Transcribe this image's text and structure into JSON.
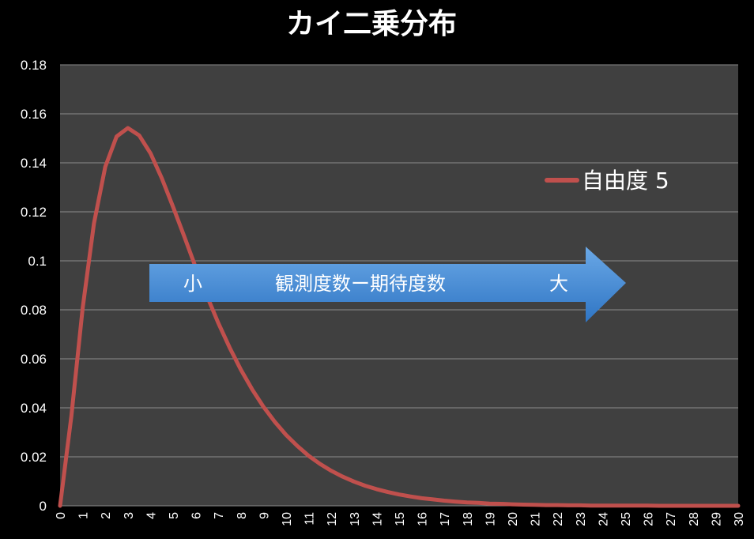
{
  "chart_data": {
    "type": "line",
    "title": "カイ二乗分布",
    "xlabel": "",
    "ylabel": "",
    "xlim": [
      0,
      30
    ],
    "ylim": [
      0,
      0.18
    ],
    "yticks": [
      "0",
      "0.02",
      "0.04",
      "0.06",
      "0.08",
      "0.1",
      "0.12",
      "0.14",
      "0.16",
      "0.18"
    ],
    "xticks": [
      "0",
      "1",
      "2",
      "3",
      "4",
      "5",
      "6",
      "7",
      "8",
      "9",
      "10",
      "11",
      "12",
      "13",
      "14",
      "15",
      "16",
      "17",
      "18",
      "19",
      "20",
      "21",
      "22",
      "23",
      "24",
      "25",
      "26",
      "27",
      "28",
      "29",
      "30"
    ],
    "grid": true,
    "legend_position": "right",
    "series": [
      {
        "name": "自由度 5",
        "color": "#c0504d",
        "x": [
          0,
          0.5,
          1,
          1.5,
          2,
          2.5,
          3,
          3.5,
          4,
          4.5,
          5,
          5.5,
          6,
          6.5,
          7,
          7.5,
          8,
          8.5,
          9,
          9.5,
          10,
          10.5,
          11,
          11.5,
          12,
          12.5,
          13,
          13.5,
          14,
          14.5,
          15,
          15.5,
          16,
          16.5,
          17,
          17.5,
          18,
          18.5,
          19,
          19.5,
          20,
          20.5,
          21,
          21.5,
          22,
          22.5,
          23,
          23.5,
          24,
          24.5,
          25,
          25.5,
          26,
          26.5,
          27,
          27.5,
          28,
          28.5,
          29,
          29.5,
          30
        ],
        "y": [
          0,
          0.0366,
          0.0807,
          0.1153,
          0.1384,
          0.1507,
          0.1542,
          0.1512,
          0.1439,
          0.1337,
          0.122,
          0.1098,
          0.0973,
          0.0856,
          0.0746,
          0.0646,
          0.0555,
          0.0475,
          0.0404,
          0.0343,
          0.0289,
          0.0244,
          0.0204,
          0.0171,
          0.0143,
          0.0119,
          0.0099,
          0.0082,
          0.0068,
          0.0056,
          0.0046,
          0.0038,
          0.0031,
          0.0026,
          0.0021,
          0.0017,
          0.0014,
          0.0012,
          0.0009,
          0.0008,
          0.0006,
          0.0005,
          0.0004,
          0.0003,
          0.0003,
          0.0002,
          0.0002,
          0.0001,
          0.0001,
          0.0001,
          0.0001,
          0.0001,
          0.0001,
          0,
          0,
          0,
          0,
          0,
          0,
          0,
          0
        ]
      }
    ],
    "annotation": {
      "small_label": "小",
      "middle_label": "観測度数ー期待度数",
      "large_label": "大",
      "arrow_color": "#4a8fd4"
    }
  }
}
